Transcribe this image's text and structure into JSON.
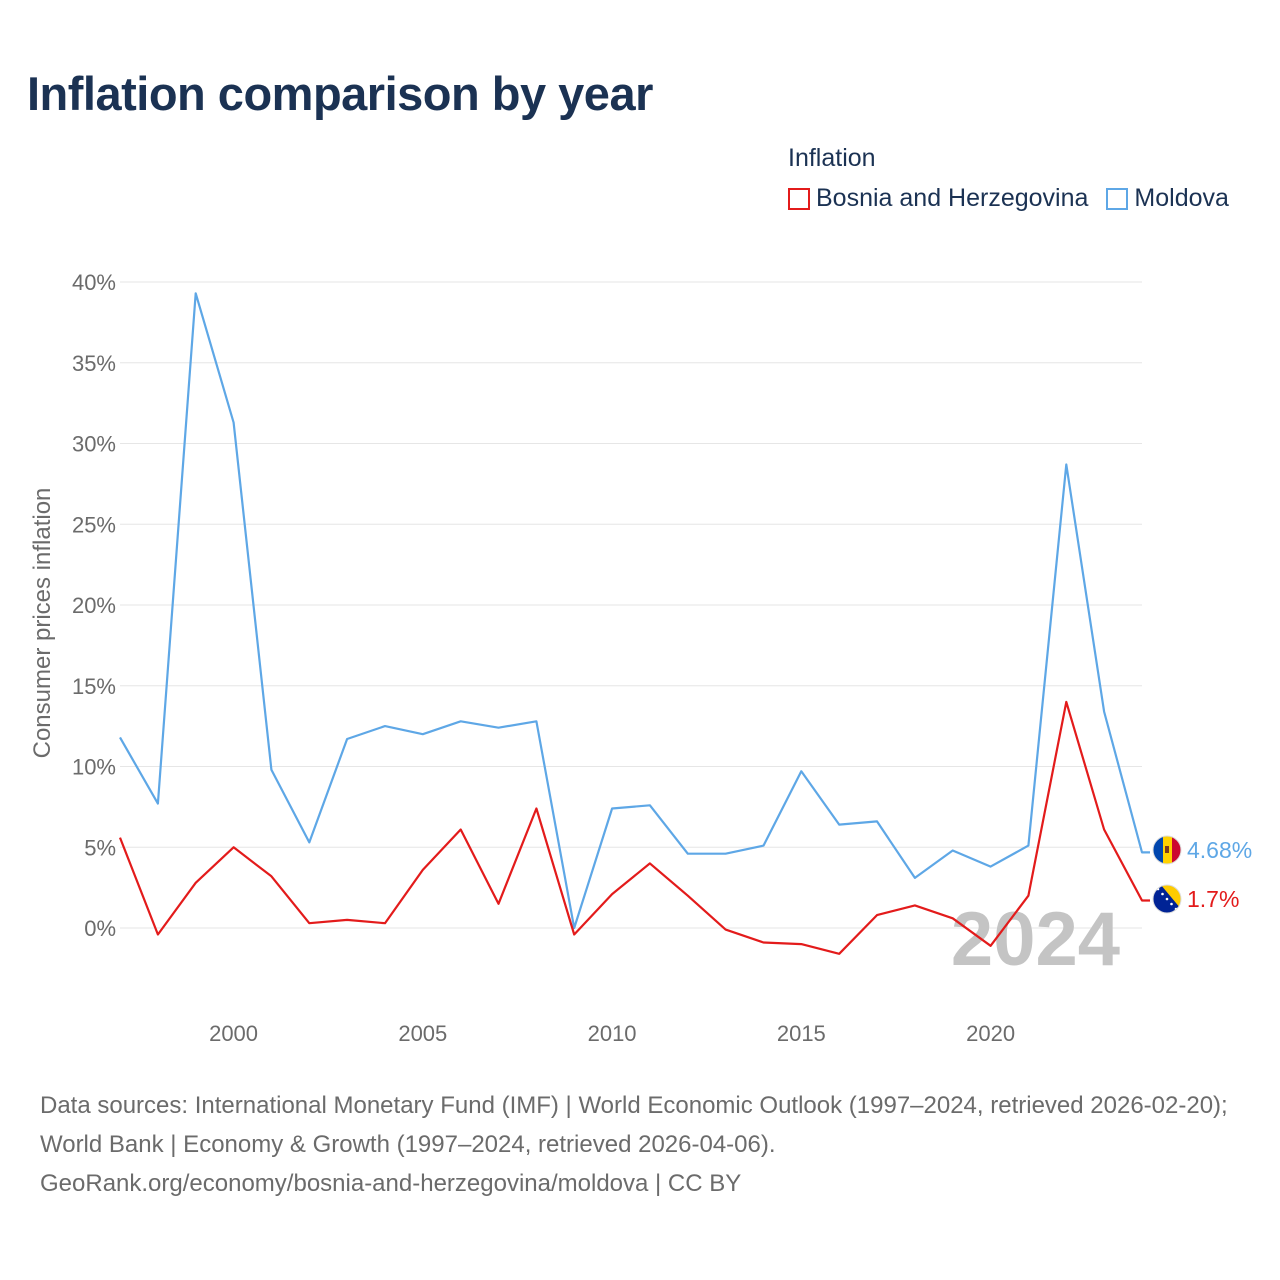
{
  "title": "Inflation comparison by year",
  "legend": {
    "title": "Inflation",
    "items": [
      {
        "label": "Bosnia and Herzegovina",
        "color": "#e31b1b"
      },
      {
        "label": "Moldova",
        "color": "#5ea7e6"
      }
    ]
  },
  "chart_data": {
    "type": "line",
    "title": "Inflation comparison by year",
    "ylabel": "Consumer prices inflation",
    "xlabel": "",
    "xlim": [
      1997,
      2024
    ],
    "ylim": [
      -5,
      40
    ],
    "y_ticks": [
      0,
      5,
      10,
      15,
      20,
      25,
      30,
      35,
      40
    ],
    "y_tick_labels": [
      "0%",
      "5%",
      "10%",
      "15%",
      "20%",
      "25%",
      "30%",
      "35%",
      "40%"
    ],
    "x_ticks": [
      2000,
      2005,
      2010,
      2015,
      2020
    ],
    "x_tick_labels": [
      "2000",
      "2005",
      "2010",
      "2015",
      "2020"
    ],
    "grid": true,
    "current_year_label": "2024",
    "x": [
      1997,
      1998,
      1999,
      2000,
      2001,
      2002,
      2003,
      2004,
      2005,
      2006,
      2007,
      2008,
      2009,
      2010,
      2011,
      2012,
      2013,
      2014,
      2015,
      2016,
      2017,
      2018,
      2019,
      2020,
      2021,
      2022,
      2023,
      2024
    ],
    "series": [
      {
        "name": "Moldova",
        "color": "#5ea7e6",
        "end_label": "4.68%",
        "values": [
          11.8,
          7.7,
          39.3,
          31.3,
          9.8,
          5.3,
          11.7,
          12.5,
          12.0,
          12.8,
          12.4,
          12.8,
          0.0,
          7.4,
          7.6,
          4.6,
          4.6,
          5.1,
          9.7,
          6.4,
          6.6,
          3.1,
          4.8,
          3.8,
          5.1,
          28.7,
          13.4,
          4.68
        ]
      },
      {
        "name": "Bosnia and Herzegovina",
        "color": "#e31b1b",
        "end_label": "1.7%",
        "values": [
          5.6,
          -0.4,
          2.8,
          5.0,
          3.2,
          0.3,
          0.5,
          0.3,
          3.6,
          6.1,
          1.5,
          7.4,
          -0.4,
          2.1,
          4.0,
          2.0,
          -0.1,
          -0.9,
          -1.0,
          -1.6,
          0.8,
          1.4,
          0.6,
          -1.1,
          2.0,
          14.0,
          6.1,
          1.7
        ]
      }
    ]
  },
  "footer": {
    "sources": "Data sources: International Monetary Fund (IMF) | World Economic Outlook (1997–2024, retrieved 2026-02-20); World Bank | Economy & Growth (1997–2024, retrieved 2026-04-06).",
    "credit": "GeoRank.org/economy/bosnia-and-herzegovina/moldova | CC BY"
  }
}
